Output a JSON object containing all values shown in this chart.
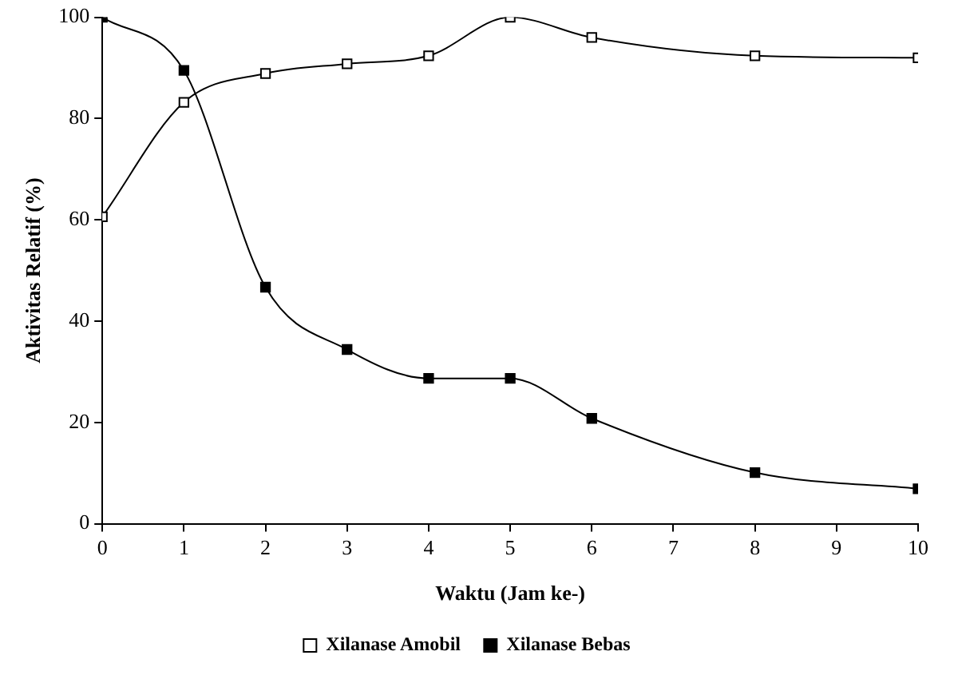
{
  "chart_data": {
    "type": "line",
    "xlabel": "Waktu (Jam ke-)",
    "ylabel": "Aktivitas Relatif (%)",
    "x": [
      0,
      1,
      2,
      3,
      4,
      5,
      6,
      8,
      10
    ],
    "series": [
      {
        "name": "Xilanase Amobil",
        "color": "#000000",
        "values": [
          60.6,
          83.2,
          88.9,
          90.8,
          92.4,
          100,
          96.0,
          92.4,
          92.0
        ]
      },
      {
        "name": "Xilanase Bebas",
        "color": "#000000",
        "values": [
          100,
          89.5,
          46.7,
          34.4,
          28.7,
          28.7,
          20.8,
          10.1,
          6.9
        ]
      }
    ],
    "xlim": [
      0,
      10
    ],
    "xticks": [
      0,
      1,
      2,
      3,
      4,
      5,
      6,
      7,
      8,
      9,
      10
    ],
    "ylim": [
      0,
      100
    ],
    "yticks": [
      0,
      20,
      40,
      60,
      80,
      100
    ],
    "grid": false,
    "legend": "bottom",
    "marker": "square",
    "line_style": "solid"
  }
}
